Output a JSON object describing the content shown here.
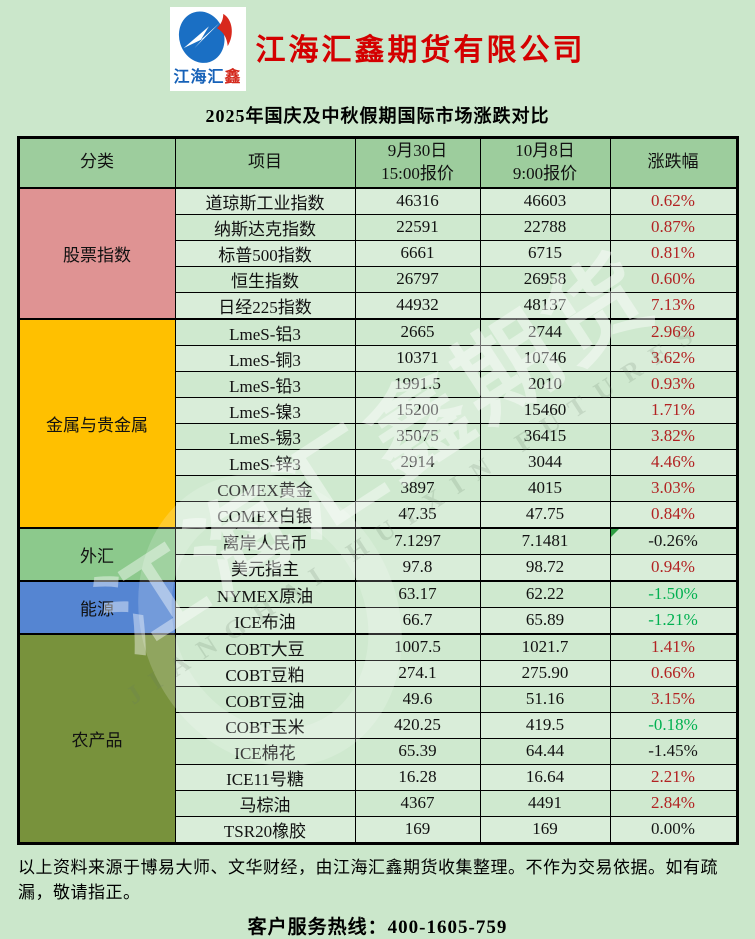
{
  "header": {
    "logo_text_blue": "江海汇",
    "logo_text_red": "鑫",
    "company_name": "江海汇鑫期货有限公司",
    "subtitle": "2025年国庆及中秋假期国际市场涨跌对比"
  },
  "colors": {
    "page_bg": "#cbe7cb",
    "table_header_bg": "#9dcd9d",
    "up": "#b22222",
    "down": "#00b050",
    "neutral": "#161616",
    "logo_blue": "#1661b8",
    "logo_red": "#d42a1e",
    "title_red": "#d40000"
  },
  "table": {
    "columns": [
      {
        "l1": "分类",
        "l2": ""
      },
      {
        "l1": "项目",
        "l2": ""
      },
      {
        "l1": "9月30日",
        "l2": "15:00报价"
      },
      {
        "l1": "10月8日",
        "l2": "9:00报价"
      },
      {
        "l1": "涨跌幅",
        "l2": ""
      }
    ],
    "sections": [
      {
        "category": "股票指数",
        "color": "#df9393",
        "rows": [
          {
            "item": "道琼斯工业指数",
            "q1": "46316",
            "q2": "46603",
            "chg": "0.62%",
            "trend": "up"
          },
          {
            "item": "纳斯达克指数",
            "q1": "22591",
            "q2": "22788",
            "chg": "0.87%",
            "trend": "up"
          },
          {
            "item": "标普500指数",
            "q1": "6661",
            "q2": "6715",
            "chg": "0.81%",
            "trend": "up"
          },
          {
            "item": "恒生指数",
            "q1": "26797",
            "q2": "26958",
            "chg": "0.60%",
            "trend": "up"
          },
          {
            "item": "日经225指数",
            "q1": "44932",
            "q2": "48137",
            "chg": "7.13%",
            "trend": "up"
          }
        ]
      },
      {
        "category": "金属与贵金属",
        "color": "#ffc000",
        "rows": [
          {
            "item": "LmeS-铝3",
            "q1": "2665",
            "q2": "2744",
            "chg": "2.96%",
            "trend": "up"
          },
          {
            "item": "LmeS-铜3",
            "q1": "10371",
            "q2": "10746",
            "chg": "3.62%",
            "trend": "up"
          },
          {
            "item": "LmeS-铅3",
            "q1": "1991.5",
            "q2": "2010",
            "chg": "0.93%",
            "trend": "up"
          },
          {
            "item": "LmeS-镍3",
            "q1": "15200",
            "q2": "15460",
            "chg": "1.71%",
            "trend": "up"
          },
          {
            "item": "LmeS-锡3",
            "q1": "35075",
            "q2": "36415",
            "chg": "3.82%",
            "trend": "up"
          },
          {
            "item": "LmeS-锌3",
            "q1": "2914",
            "q2": "3044",
            "chg": "4.46%",
            "trend": "up"
          },
          {
            "item": "COMEX黄金",
            "q1": "3897",
            "q2": "4015",
            "chg": "3.03%",
            "trend": "up"
          },
          {
            "item": "COMEX白银",
            "q1": "47.35",
            "q2": "47.75",
            "chg": "0.84%",
            "trend": "up"
          }
        ]
      },
      {
        "category": "外汇",
        "color": "#8cc98c",
        "rows": [
          {
            "item": "离岸人民币",
            "q1": "7.1297",
            "q2": "7.1481",
            "chg": "-0.26%",
            "trend": "neutral",
            "note_marker": true
          },
          {
            "item": "美元指主",
            "q1": "97.8",
            "q2": "98.72",
            "chg": "0.94%",
            "trend": "up"
          }
        ]
      },
      {
        "category": "能源",
        "color": "#5585d2",
        "rows": [
          {
            "item": "NYMEX原油",
            "q1": "63.17",
            "q2": "62.22",
            "chg": "-1.50%",
            "trend": "down"
          },
          {
            "item": "ICE布油",
            "q1": "66.7",
            "q2": "65.89",
            "chg": "-1.21%",
            "trend": "down"
          }
        ]
      },
      {
        "category": "农产品",
        "color": "#78923c",
        "rows": [
          {
            "item": "COBT大豆",
            "q1": "1007.5",
            "q2": "1021.7",
            "chg": "1.41%",
            "trend": "up"
          },
          {
            "item": "COBT豆粕",
            "q1": "274.1",
            "q2": "275.90",
            "chg": "0.66%",
            "trend": "up"
          },
          {
            "item": "COBT豆油",
            "q1": "49.6",
            "q2": "51.16",
            "chg": "3.15%",
            "trend": "up"
          },
          {
            "item": "COBT玉米",
            "q1": "420.25",
            "q2": "419.5",
            "chg": "-0.18%",
            "trend": "down"
          },
          {
            "item": "ICE棉花",
            "q1": "65.39",
            "q2": "64.44",
            "chg": "-1.45%",
            "trend": "neutral"
          },
          {
            "item": "ICE11号糖",
            "q1": "16.28",
            "q2": "16.64",
            "chg": "2.21%",
            "trend": "up"
          },
          {
            "item": "马棕油",
            "q1": "4367",
            "q2": "4491",
            "chg": "2.84%",
            "trend": "up"
          },
          {
            "item": "TSR20橡胶",
            "q1": "169",
            "q2": "169",
            "chg": "0.00%",
            "trend": "neutral"
          }
        ]
      }
    ]
  },
  "watermark": {
    "text_cn": "江海汇鑫期货",
    "text_en": "JIANGHAI HUIXIN FUTURES"
  },
  "footer": {
    "note": "以上资料来源于博易大师、文华财经，由江海汇鑫期货收集整理。不作为交易依据。如有疏漏，敬请指正。",
    "hotline": "客户服务热线：400-1605-759"
  }
}
